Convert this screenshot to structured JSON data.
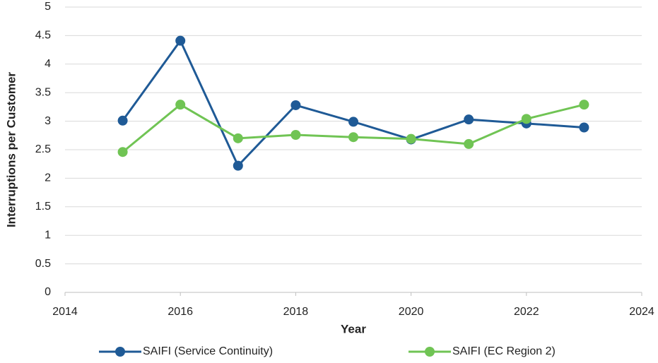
{
  "chart_data": {
    "type": "line",
    "x_label": "Year",
    "y_label": "Interruptions per Customer",
    "x": [
      2015,
      2016,
      2017,
      2018,
      2019,
      2020,
      2021,
      2022,
      2023
    ],
    "series": [
      {
        "name": "SAIFI (Service Continuity)",
        "color": "#1f5a96",
        "values": [
          3.01,
          4.41,
          2.22,
          3.28,
          2.99,
          2.68,
          3.03,
          2.96,
          2.89
        ]
      },
      {
        "name": "SAIFI (EC Region 2)",
        "color": "#70c454",
        "values": [
          2.46,
          3.29,
          2.7,
          2.76,
          2.72,
          2.69,
          2.6,
          3.04,
          3.29
        ]
      }
    ],
    "xlim": [
      2014,
      2024
    ],
    "xticks": [
      2014,
      2016,
      2018,
      2020,
      2022,
      2024
    ],
    "ylim": [
      0,
      5
    ],
    "yticks": [
      0,
      0.5,
      1,
      1.5,
      2,
      2.5,
      3,
      3.5,
      4,
      4.5,
      5
    ],
    "grid": true,
    "legend": "bottom"
  }
}
